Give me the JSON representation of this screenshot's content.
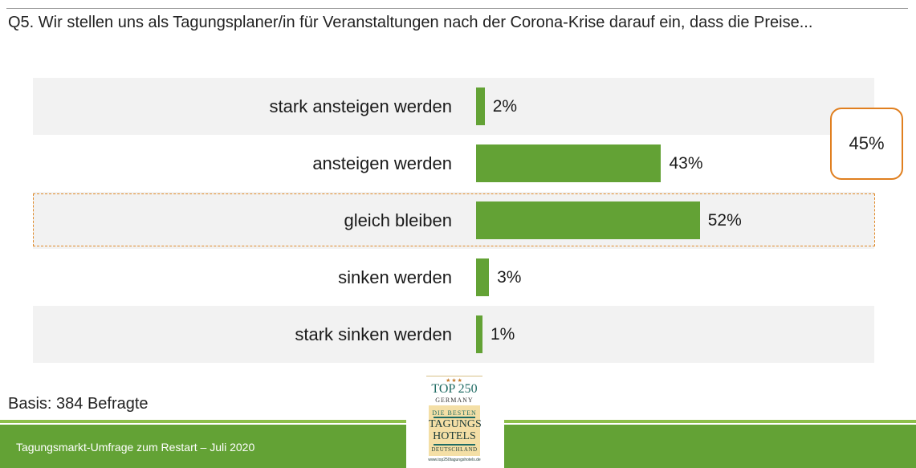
{
  "header": {
    "question": "Q5. Wir stellen uns als Tagungsplaner/in für Veranstaltungen nach der Corona-Krise darauf ein, dass die Preise..."
  },
  "chart_data": {
    "type": "bar",
    "orientation": "horizontal",
    "categories": [
      "stark ansteigen werden",
      "ansteigen werden",
      "gleich bleiben",
      "sinken werden",
      "stark sinken werden"
    ],
    "values": [
      2,
      43,
      52,
      3,
      1
    ],
    "value_labels": [
      "2%",
      "43%",
      "52%",
      "3%",
      "1%"
    ],
    "unit": "%",
    "xlim": [
      0,
      100
    ],
    "bar_color": "#63a235",
    "highlighted_category": "gleich bleiben",
    "highlight_color": "#e08a2a",
    "callout": {
      "label": "45%",
      "color": "#e07f1f"
    },
    "grid": false,
    "legend": "none"
  },
  "notes": {
    "basis": "Basis: 384 Befragte"
  },
  "footer": {
    "text": "Tagungsmarkt-Umfrage zum Restart – Juli 2020",
    "color": "#63a235"
  },
  "logo": {
    "stars": "★★★",
    "top_line": "TOP 250",
    "germany": "GERMANY",
    "best": "DIE BESTEN",
    "tagungs": "TAGUNGS",
    "hotels": "HOTELS",
    "deutschland": "DEUTSCHLAND",
    "url": "www.top250tagungshotels.de"
  }
}
